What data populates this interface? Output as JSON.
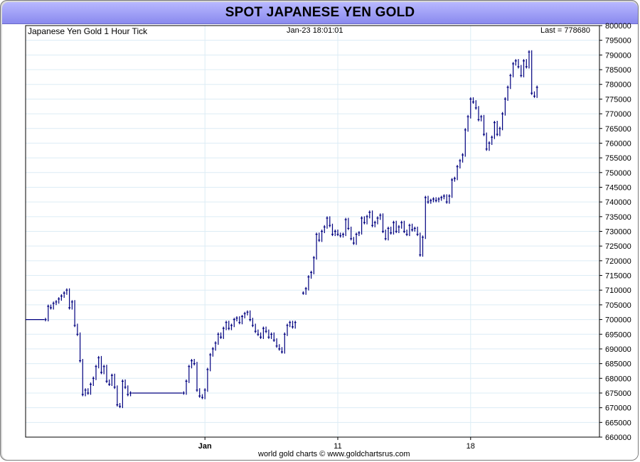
{
  "title": "SPOT JAPANESE YEN GOLD",
  "subtitle": "Japanese Yen Gold 1 Hour Tick",
  "timestamp": "Jan-23  18:01:01",
  "last_label": "Last = 778680",
  "credit": "world gold charts © www.goldchartsrus.com",
  "colors": {
    "title_bg": "#9b9bf5",
    "line": "#00007f",
    "flat": "#0000ff",
    "grid": "#dcecf5",
    "axis": "#000000"
  },
  "chart_data": {
    "type": "line",
    "title": "SPOT JAPANESE YEN GOLD",
    "subtitle": "Japanese Yen Gold 1 Hour Tick",
    "xlabel": "",
    "ylabel": "",
    "ylim": [
      660000,
      800000
    ],
    "y_tick_step": 5000,
    "x_ticks": [
      {
        "label": "Jan",
        "index": 67
      },
      {
        "label": "11",
        "index": 117
      },
      {
        "label": "18",
        "index": 167
      }
    ],
    "x_count": 216,
    "last": 778680,
    "grid": true,
    "series": [
      {
        "values": [
          700000,
          700000,
          700000,
          700000,
          700000,
          700000,
          700000,
          700000,
          704500,
          704000,
          705500,
          706000,
          707000,
          708000,
          709000,
          710000,
          704000,
          706000,
          698000,
          695000,
          686000,
          674500,
          676000,
          675000,
          678000,
          680000,
          684000,
          687000,
          682000,
          684000,
          679000,
          678000,
          681000,
          677000,
          671000,
          670500,
          679000,
          677000,
          674500,
          675000,
          675000,
          675000,
          675000,
          675000,
          675000,
          675000,
          675000,
          675000,
          675000,
          675000,
          675000,
          675000,
          675000,
          675000,
          675000,
          675000,
          675000,
          675000,
          675000,
          675000,
          679000,
          684000,
          686000,
          685000,
          676000,
          674000,
          673500,
          676000,
          683000,
          688000,
          690000,
          692000,
          695000,
          694000,
          697000,
          699000,
          697000,
          698000,
          700000,
          700500,
          699000,
          701000,
          702000,
          702500,
          700000,
          698000,
          696000,
          695000,
          694000,
          697000,
          696000,
          694000,
          695000,
          693000,
          691000,
          690000,
          689000,
          695000,
          698000,
          699000,
          697500,
          699000,
          null,
          null,
          709000,
          710500,
          714500,
          716000,
          721000,
          729000,
          727000,
          730000,
          731500,
          734500,
          732000,
          729000,
          730000,
          729000,
          728500,
          729000,
          734000,
          731000,
          727500,
          726000,
          729000,
          729500,
          734500,
          733000,
          735000,
          736500,
          732000,
          733000,
          734500,
          735500,
          730000,
          727500,
          731000,
          729500,
          733000,
          730000,
          731500,
          733000,
          730000,
          729000,
          732000,
          730500,
          731000,
          729000,
          722000,
          728000,
          741500,
          740000,
          740500,
          741000,
          740500,
          741000,
          741500,
          742000,
          740000,
          742000,
          747500,
          748000,
          752000,
          754000,
          756000,
          764500,
          769000,
          775000,
          774000,
          772000,
          768000,
          769000,
          763000,
          758000,
          760000,
          762000,
          767000,
          763000,
          765000,
          770000,
          775000,
          779000,
          783000,
          787000,
          788000,
          786000,
          783000,
          788000,
          786000,
          791000,
          777000,
          776000,
          779000
        ]
      }
    ]
  }
}
